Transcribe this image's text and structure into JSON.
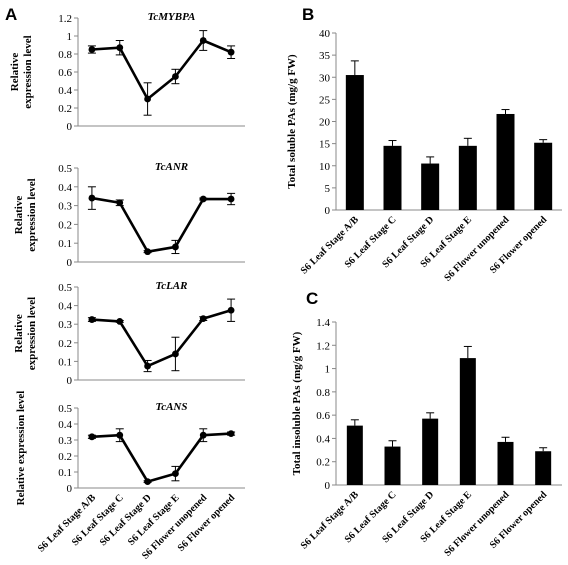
{
  "panels": [
    "A",
    "B",
    "C"
  ],
  "chart_data": [
    {
      "panel": "A",
      "type": "line",
      "title": "TcMYBPA",
      "ylabel": [
        "Relative",
        "expression level"
      ],
      "ylim": [
        0,
        1.2
      ],
      "yticks": [
        "0",
        "0.2",
        "0.4",
        "0.6",
        "0.8",
        "1",
        "1.2"
      ],
      "categories": [
        "S6 Leaf Stage A/B",
        "S6 Leaf Stage C",
        "S6 Leaf Stage D",
        "S6 Leaf Stage E",
        "S6 Flower unopened",
        "S6 Flower opened"
      ],
      "values": [
        0.85,
        0.87,
        0.3,
        0.55,
        0.95,
        0.82
      ],
      "errors": [
        0.04,
        0.08,
        0.18,
        0.08,
        0.11,
        0.07
      ]
    },
    {
      "panel": "A",
      "type": "line",
      "title": "TcANR",
      "ylabel": [
        "Relative",
        "expression level"
      ],
      "ylim": [
        0,
        0.5
      ],
      "yticks": [
        "0",
        "0.1",
        "0.2",
        "0.3",
        "0.4",
        "0.5"
      ],
      "categories": [
        "S6 Leaf Stage A/B",
        "S6 Leaf Stage C",
        "S6 Leaf Stage D",
        "S6 Leaf Stage E",
        "S6 Flower unopened",
        "S6 Flower opened"
      ],
      "values": [
        0.34,
        0.315,
        0.055,
        0.08,
        0.335,
        0.335
      ],
      "errors": [
        0.06,
        0.015,
        0.005,
        0.035,
        0.005,
        0.03
      ]
    },
    {
      "panel": "A",
      "type": "line",
      "title": "TcLAR",
      "ylabel": [
        "Relative",
        "expression level"
      ],
      "ylim": [
        0,
        0.5
      ],
      "yticks": [
        "0",
        "0.1",
        "0.2",
        "0.3",
        "0.4",
        "0.5"
      ],
      "categories": [
        "S6 Leaf Stage A/B",
        "S6 Leaf Stage C",
        "S6 Leaf Stage D",
        "S6 Leaf Stage E",
        "S6 Flower unopened",
        "S6 Flower opened"
      ],
      "values": [
        0.325,
        0.315,
        0.075,
        0.14,
        0.33,
        0.375
      ],
      "errors": [
        0.01,
        0.005,
        0.03,
        0.09,
        0.01,
        0.06
      ]
    },
    {
      "panel": "A",
      "type": "line",
      "title": "TcANS",
      "ylabel": [
        "Relative expression level"
      ],
      "ylim": [
        0,
        0.5
      ],
      "yticks": [
        "0",
        "0.1",
        "0.2",
        "0.3",
        "0.4",
        "0.5"
      ],
      "categories": [
        "S6 Leaf Stage A/B",
        "S6 Leaf Stage C",
        "S6 Leaf Stage D",
        "S6 Leaf Stage E",
        "S6 Flower unopened",
        "S6 Flower opened"
      ],
      "values": [
        0.32,
        0.33,
        0.04,
        0.09,
        0.33,
        0.34
      ],
      "errors": [
        0.01,
        0.04,
        0.005,
        0.045,
        0.04,
        0.01
      ]
    },
    {
      "panel": "B",
      "type": "bar",
      "title": "",
      "ylabel": [
        "Total soluble PAs (mg/g FW)"
      ],
      "ylim": [
        0,
        40
      ],
      "yticks": [
        "0",
        "5",
        "10",
        "15",
        "20",
        "25",
        "30",
        "35",
        "40"
      ],
      "categories": [
        "S6 Leaf Stage A/B",
        "S6 Leaf  Stage C",
        "S6 Leaf Stage D",
        "S6 Leaf  Stage E",
        "S6 Flower unopened",
        "S6 Flower opened"
      ],
      "values": [
        30.5,
        14.5,
        10.5,
        14.5,
        21.7,
        15.2
      ],
      "errors": [
        3.2,
        1.2,
        1.5,
        1.7,
        1.0,
        0.7
      ]
    },
    {
      "panel": "C",
      "type": "bar",
      "title": "",
      "ylabel": [
        "Total insoluble PAs (mg/g FW)"
      ],
      "ylim": [
        0,
        1.4
      ],
      "yticks": [
        "0",
        "0.2",
        "0.4",
        "0.6",
        "0.8",
        "1",
        "1.2",
        "1.4"
      ],
      "categories": [
        "S6 Leaf Stage A/B",
        "S6 Leaf Stage C",
        "S6 Leaf Stage D",
        "S6 Leaf Stage E",
        "S6 Flower unopened",
        "S6 Flower opened"
      ],
      "values": [
        0.51,
        0.33,
        0.57,
        1.09,
        0.37,
        0.29
      ],
      "errors": [
        0.05,
        0.05,
        0.05,
        0.1,
        0.04,
        0.03
      ]
    }
  ]
}
